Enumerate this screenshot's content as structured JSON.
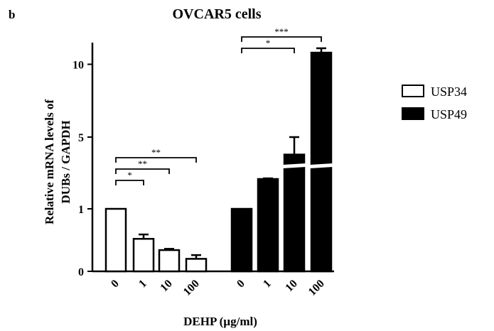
{
  "panel_label": "b",
  "chart_data": {
    "type": "bar",
    "title": "OVCAR5 cells",
    "xlabel": "DEHP (µg/ml)",
    "ylabel_lines": [
      "Relative mRNA levels of",
      "DUBs / GAPDH"
    ],
    "yscale": "segmented (axis break between 1 and 5 not drawn; 0–1 and 1–3 linear, 3–11 linear compressed)",
    "yticks": [
      "0",
      "1",
      "5",
      "10"
    ],
    "ylim": [
      0,
      11.2
    ],
    "series": [
      {
        "name": "USP34",
        "fill": "#ffffff",
        "categories": [
          "0",
          "1",
          "10",
          "100"
        ],
        "values": [
          1.0,
          0.52,
          0.34,
          0.2
        ],
        "errors": [
          0.0,
          0.07,
          0.02,
          0.06
        ]
      },
      {
        "name": "USP49",
        "fill": "#000000",
        "categories": [
          "0",
          "1",
          "10",
          "100"
        ],
        "values": [
          1.0,
          2.4,
          3.8,
          10.8
        ],
        "errors": [
          0.0,
          0.03,
          1.2,
          0.3
        ]
      }
    ],
    "significance": [
      {
        "series": "USP34",
        "from": "0",
        "to": "1",
        "label": "*"
      },
      {
        "series": "USP34",
        "from": "0",
        "to": "10",
        "label": "**"
      },
      {
        "series": "USP34",
        "from": "0",
        "to": "100",
        "label": "**"
      },
      {
        "series": "USP49",
        "from": "0",
        "to": "10",
        "label": "*"
      },
      {
        "series": "USP49",
        "from": "0",
        "to": "100",
        "label": "***"
      }
    ],
    "legend": {
      "placement": "right",
      "entries": [
        "USP34",
        "USP49"
      ]
    },
    "grid": false
  }
}
